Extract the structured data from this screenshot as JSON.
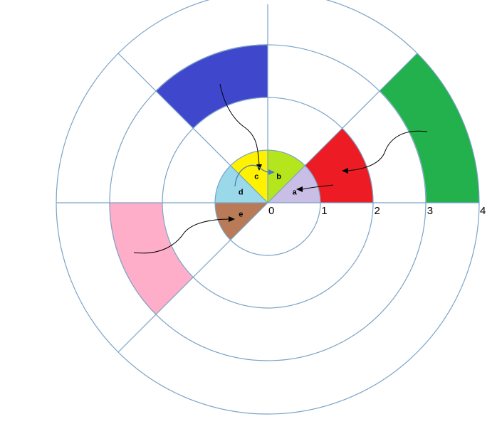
{
  "diagram": {
    "type": "radial-sector-diagram",
    "scale_labels": [
      "0",
      "1",
      "2",
      "3",
      "4"
    ],
    "segments": [
      {
        "label": "a",
        "inner": 0,
        "outer": 1,
        "start_deg": 0,
        "end_deg": 45,
        "color": "#c8bee6"
      },
      {
        "label": "b",
        "inner": 0,
        "outer": 1,
        "start_deg": 45,
        "end_deg": 90,
        "color": "#b5e61d"
      },
      {
        "label": "c",
        "inner": 0,
        "outer": 1,
        "start_deg": 90,
        "end_deg": 135,
        "color": "#fff200"
      },
      {
        "label": "d",
        "inner": 0,
        "outer": 1,
        "start_deg": 135,
        "end_deg": 180,
        "color": "#99d9ea"
      },
      {
        "label": "e",
        "inner": 0,
        "outer": 1,
        "start_deg": 180,
        "end_deg": 225,
        "color": "#b97a57"
      },
      {
        "label": "",
        "inner": 1,
        "outer": 2,
        "start_deg": 0,
        "end_deg": 45,
        "color": "#ed1c24"
      },
      {
        "label": "",
        "inner": 3,
        "outer": 4,
        "start_deg": 0,
        "end_deg": 45,
        "color": "#22b14c"
      },
      {
        "label": "",
        "inner": 2,
        "outer": 3,
        "start_deg": 90,
        "end_deg": 135,
        "color": "#3f48cc"
      },
      {
        "label": "",
        "inner": 2,
        "outer": 3,
        "start_deg": 180,
        "end_deg": 225,
        "color": "#ffaec9"
      }
    ]
  }
}
